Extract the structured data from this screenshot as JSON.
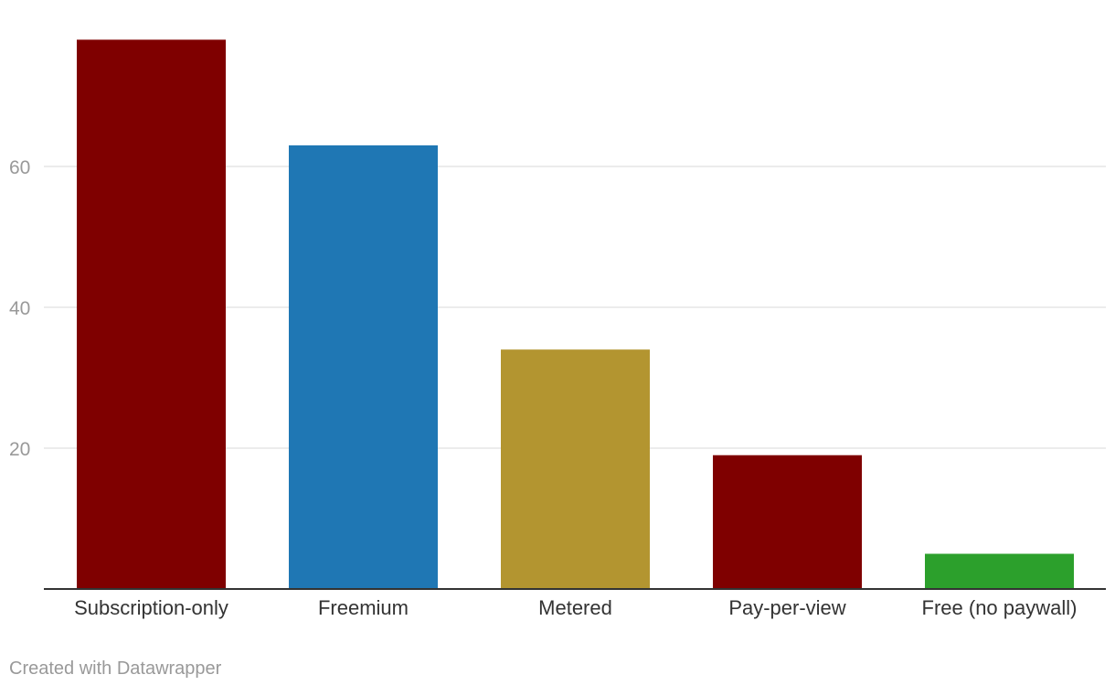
{
  "chart_data": {
    "type": "bar",
    "categories": [
      "Subscription-only",
      "Freemium",
      "Metered",
      "Pay-per-view",
      "Free (no paywall)"
    ],
    "values": [
      78,
      63,
      34,
      19,
      5
    ],
    "colors": [
      "#7f0000",
      "#1f77b4",
      "#b39530",
      "#7f0000",
      "#2ca02c"
    ],
    "y_ticks": [
      20,
      40,
      60
    ],
    "ylim": [
      0,
      80
    ],
    "grid": true,
    "title": "",
    "xlabel": "",
    "ylabel": ""
  },
  "footer": {
    "attribution": "Created with Datawrapper"
  }
}
